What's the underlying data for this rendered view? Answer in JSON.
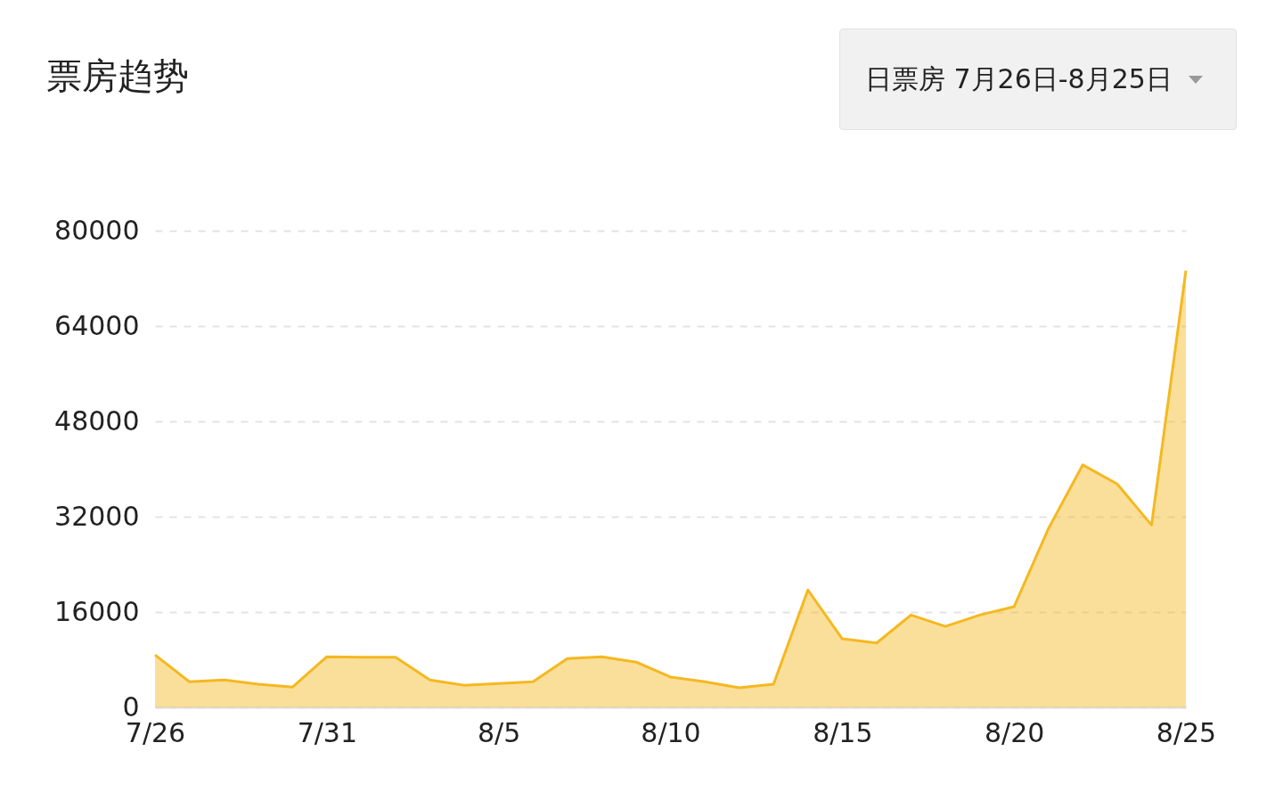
{
  "chart_data": {
    "type": "area",
    "title": "票房趋势",
    "annotations": [
      "日票房 7月26日-8月25日"
    ],
    "x": [
      "--07-26",
      "--07-27",
      "--07-28",
      "--07-29",
      "--07-30",
      "--07-31",
      "--08-01",
      "--08-02",
      "--08-03",
      "--08-04",
      "--08-05",
      "--08-06",
      "--08-07",
      "--08-08",
      "--08-09",
      "--08-10",
      "--08-11",
      "--08-12",
      "--08-13",
      "--08-14",
      "--08-15",
      "--08-16",
      "--08-17",
      "--08-18",
      "--08-19",
      "--08-20",
      "--08-21",
      "--08-22",
      "--08-23",
      "--08-24",
      "--08-25"
    ],
    "series": [
      {
        "color": "#f5b820",
        "values": [
          8800,
          4300,
          4600,
          3900,
          3400,
          8500,
          8400,
          8400,
          4600,
          3700,
          4000,
          4300,
          8200,
          8500,
          7600,
          5100,
          4300,
          3300,
          3900,
          19700,
          11500,
          10800,
          15500,
          13600,
          15500,
          16900,
          30000,
          40700,
          37500,
          30600,
          73300
        ]
      }
    ],
    "xlim": [
      "--07-26",
      "--08-25"
    ],
    "xticks": [
      {
        "value": "--07-26",
        "label": "7/26"
      },
      {
        "value": "--07-31",
        "label": "7/31"
      },
      {
        "value": "--08-05",
        "label": "8/5"
      },
      {
        "value": "--08-10",
        "label": "8/10"
      },
      {
        "value": "--08-15",
        "label": "8/15"
      },
      {
        "value": "--08-20",
        "label": "8/20"
      },
      {
        "value": "--08-25",
        "label": "8/25"
      }
    ],
    "ylim": [
      0,
      80000
    ],
    "yticks": [
      0,
      16000,
      32000,
      48000,
      64000,
      80000
    ],
    "grid": "y"
  }
}
